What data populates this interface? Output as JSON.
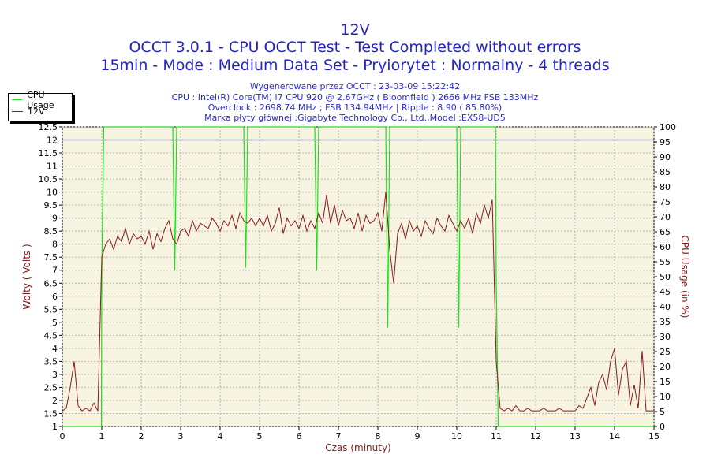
{
  "header": {
    "title": "12V",
    "line2": "OCCT 3.0.1 - CPU OCCT Test - Test Completed without errors",
    "line3": "15min - Mode : Medium Data Set - Pryiorytet : Normalny - 4 threads",
    "info": [
      "Wygenerowane przez OCCT : 23-03-09 15:22:42",
      "CPU : Intel(R) Core(TM) i7 CPU 920 @ 2.67GHz ( Bloomfield ) 2666 MHz FSB 133MHz",
      "Overclock : 2698.74 MHz ; FSB 134.94MHz | Ripple : 8.90 ( 85.80%)",
      "Marka płyty głównej :Gigabyte Technology Co., Ltd.,Model :EX58-UD5"
    ]
  },
  "chart_data": {
    "type": "line",
    "title": "12V",
    "xlabel": "Czas (minuty)",
    "ylabel": "Wolty ( Volts )",
    "y2label": "CPU Usage (in %)",
    "xlim": [
      0,
      15
    ],
    "ylim": [
      1,
      12.5
    ],
    "y2lim": [
      0,
      100
    ],
    "xticks": [
      "0",
      "1",
      "2",
      "3",
      "4",
      "5",
      "6",
      "7",
      "8",
      "9",
      "10",
      "11",
      "12",
      "13",
      "14",
      "15"
    ],
    "yticks": [
      "1",
      "1.5",
      "2",
      "2.5",
      "3",
      "3.5",
      "4",
      "4.5",
      "5",
      "5.5",
      "6",
      "6.5",
      "7",
      "7.5",
      "8",
      "8.5",
      "9",
      "9.5",
      "10",
      "10.5",
      "11",
      "11.5",
      "12",
      "12.5"
    ],
    "y2ticks": [
      "0",
      "5",
      "10",
      "15",
      "20",
      "25",
      "30",
      "35",
      "40",
      "45",
      "50",
      "55",
      "60",
      "65",
      "70",
      "75",
      "80",
      "85",
      "90",
      "95",
      "100"
    ],
    "legend": {
      "position": "top-left",
      "entries": [
        "CPU Usage",
        "12V"
      ]
    },
    "reference_line": {
      "axis": "y",
      "value": 12,
      "color": "#1c1cb4"
    },
    "grid": true,
    "series": [
      {
        "name": "CPU Usage",
        "axis": "right",
        "color": "#22dd22",
        "x": [
          0,
          0.99,
          1.0,
          1.05,
          2.8,
          2.85,
          2.9,
          4.6,
          4.65,
          4.7,
          6.4,
          6.45,
          6.5,
          8.2,
          8.25,
          8.3,
          10.0,
          10.05,
          10.1,
          10.98,
          11.0,
          11.05,
          15
        ],
        "y": [
          0,
          0,
          50,
          100,
          100,
          52,
          100,
          100,
          53,
          100,
          100,
          52,
          100,
          100,
          33,
          100,
          100,
          33,
          100,
          100,
          50,
          0,
          0
        ]
      },
      {
        "name": "12V",
        "axis": "left",
        "color": "#8b1a1a",
        "x_start": 0,
        "x_step": 0.1,
        "y": [
          1.6,
          1.7,
          2.5,
          3.5,
          1.8,
          1.6,
          1.7,
          1.6,
          1.9,
          1.6,
          7.5,
          8.0,
          8.2,
          7.8,
          8.3,
          8.1,
          8.6,
          8.0,
          8.4,
          8.2,
          8.3,
          8.0,
          8.5,
          7.8,
          8.4,
          8.1,
          8.6,
          8.9,
          8.2,
          8.0,
          8.5,
          8.6,
          8.3,
          8.9,
          8.5,
          8.8,
          8.7,
          8.6,
          9.0,
          8.8,
          8.5,
          8.9,
          8.7,
          9.1,
          8.6,
          9.2,
          8.9,
          8.8,
          9.0,
          8.7,
          9.0,
          8.7,
          9.1,
          8.5,
          8.8,
          9.4,
          8.4,
          9.0,
          8.7,
          8.9,
          8.6,
          9.1,
          8.5,
          8.9,
          8.6,
          9.2,
          8.8,
          9.9,
          8.8,
          9.5,
          8.7,
          9.3,
          8.9,
          9.0,
          8.6,
          9.2,
          8.5,
          9.1,
          8.8,
          8.9,
          9.2,
          8.5,
          10.0,
          7.8,
          6.5,
          8.4,
          8.8,
          8.2,
          8.9,
          8.5,
          8.7,
          8.3,
          8.9,
          8.6,
          8.4,
          9.0,
          8.7,
          8.5,
          9.1,
          8.8,
          8.5,
          8.9,
          8.6,
          9.0,
          8.4,
          9.2,
          8.8,
          9.5,
          9.0,
          9.7,
          3.5,
          1.7,
          1.6,
          1.7,
          1.6,
          1.8,
          1.6,
          1.6,
          1.7,
          1.6,
          1.6,
          1.6,
          1.7,
          1.6,
          1.6,
          1.6,
          1.7,
          1.6,
          1.6,
          1.6,
          1.6,
          1.8,
          1.7,
          2.1,
          2.5,
          1.8,
          2.7,
          3.0,
          2.4,
          3.5,
          4.0,
          2.2,
          3.2,
          3.5,
          1.8,
          2.6,
          1.7,
          3.9,
          1.6,
          1.6,
          1.6
        ]
      }
    ]
  }
}
